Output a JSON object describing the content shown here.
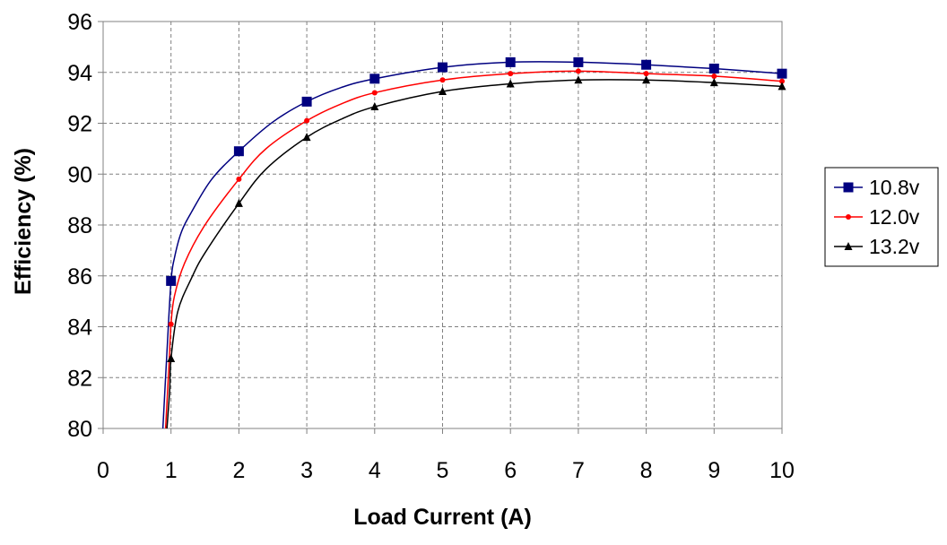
{
  "chart_data": {
    "type": "line",
    "title": "",
    "xlabel": "Load Current (A)",
    "ylabel": "Efficiency (%)",
    "xlim": [
      0,
      10
    ],
    "ylim": [
      80,
      96
    ],
    "x_ticks": [
      "0",
      "1",
      "2",
      "3",
      "4",
      "5",
      "6",
      "7",
      "8",
      "9",
      "10"
    ],
    "y_ticks": [
      "80",
      "82",
      "84",
      "86",
      "88",
      "90",
      "92",
      "94",
      "96"
    ],
    "grid": "dashed major gridlines",
    "legend_position": "right",
    "series": [
      {
        "name": "10.8v",
        "color": "#000080",
        "marker": "square",
        "points": [
          [
            1,
            85.8
          ],
          [
            2,
            90.9
          ],
          [
            3,
            92.85
          ],
          [
            4,
            93.75
          ],
          [
            5,
            94.2
          ],
          [
            6,
            94.4
          ],
          [
            7,
            94.4
          ],
          [
            8,
            94.3
          ],
          [
            9,
            94.15
          ],
          [
            10,
            93.95
          ]
        ],
        "curve": [
          [
            0.88,
            80
          ],
          [
            0.94,
            83
          ],
          [
            1,
            85.8
          ],
          [
            1.05,
            86.7
          ],
          [
            1.15,
            87.7
          ],
          [
            1.3,
            88.5
          ],
          [
            1.6,
            89.8
          ],
          [
            2,
            90.9
          ],
          [
            2.5,
            92.05
          ],
          [
            3,
            92.85
          ],
          [
            3.5,
            93.4
          ],
          [
            4,
            93.75
          ],
          [
            5,
            94.2
          ],
          [
            6,
            94.4
          ],
          [
            7,
            94.4
          ],
          [
            8,
            94.3
          ],
          [
            9,
            94.15
          ],
          [
            10,
            93.95
          ]
        ]
      },
      {
        "name": "12.0v",
        "color": "#ff0000",
        "marker": "circle",
        "points": [
          [
            1,
            84.1
          ],
          [
            2,
            89.8
          ],
          [
            3,
            92.1
          ],
          [
            4,
            93.2
          ],
          [
            5,
            93.7
          ],
          [
            6,
            93.95
          ],
          [
            7,
            94.05
          ],
          [
            8,
            93.95
          ],
          [
            9,
            93.85
          ],
          [
            10,
            93.65
          ]
        ],
        "curve": [
          [
            0.92,
            80
          ],
          [
            0.97,
            82.5
          ],
          [
            1,
            84.1
          ],
          [
            1.05,
            85.2
          ],
          [
            1.2,
            86.5
          ],
          [
            1.5,
            88
          ],
          [
            2,
            89.8
          ],
          [
            2.4,
            91
          ],
          [
            3,
            92.1
          ],
          [
            3.5,
            92.75
          ],
          [
            4,
            93.2
          ],
          [
            5,
            93.7
          ],
          [
            6,
            93.95
          ],
          [
            7,
            94.05
          ],
          [
            8,
            93.95
          ],
          [
            9,
            93.85
          ],
          [
            10,
            93.65
          ]
        ]
      },
      {
        "name": "13.2v",
        "color": "#000000",
        "marker": "triangle",
        "points": [
          [
            1,
            82.75
          ],
          [
            2,
            88.85
          ],
          [
            3,
            91.45
          ],
          [
            4,
            92.65
          ],
          [
            5,
            93.25
          ],
          [
            6,
            93.55
          ],
          [
            7,
            93.7
          ],
          [
            8,
            93.7
          ],
          [
            9,
            93.6
          ],
          [
            10,
            93.45
          ]
        ],
        "curve": [
          [
            0.94,
            80
          ],
          [
            0.98,
            81.5
          ],
          [
            1,
            82.75
          ],
          [
            1.1,
            84.6
          ],
          [
            1.3,
            85.9
          ],
          [
            1.5,
            86.9
          ],
          [
            2,
            88.85
          ],
          [
            2.4,
            90.2
          ],
          [
            3,
            91.45
          ],
          [
            3.5,
            92.15
          ],
          [
            4,
            92.65
          ],
          [
            5,
            93.25
          ],
          [
            6,
            93.55
          ],
          [
            7,
            93.7
          ],
          [
            8,
            93.7
          ],
          [
            9,
            93.6
          ],
          [
            10,
            93.45
          ]
        ]
      }
    ]
  }
}
